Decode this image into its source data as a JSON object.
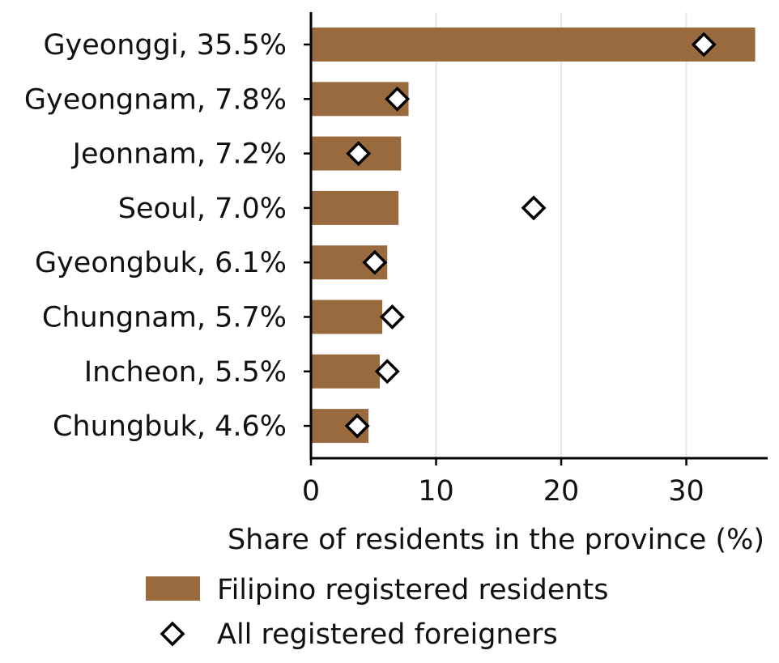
{
  "chart_data": {
    "type": "bar",
    "orientation": "horizontal",
    "categories": [
      "Gyeonggi, 35.5%",
      "Gyeongnam, 7.8%",
      "Jeonnam, 7.2%",
      "Seoul, 7.0%",
      "Gyeongbuk, 6.1%",
      "Chungnam, 5.7%",
      "Incheon, 5.5%",
      "Chungbuk, 4.6%"
    ],
    "series": [
      {
        "name": "Filipino registered residents",
        "mark": "bar",
        "color": "#9a6a3f",
        "values": [
          35.5,
          7.8,
          7.2,
          7.0,
          6.1,
          5.7,
          5.5,
          4.6
        ]
      },
      {
        "name": "All registered foreigners",
        "mark": "diamond",
        "color": "#000000",
        "values": [
          31.4,
          6.9,
          3.8,
          17.8,
          5.1,
          6.5,
          6.1,
          3.7
        ]
      }
    ],
    "xlabel": "Share of residents in the province (%)",
    "ylabel": "",
    "xlim": [
      0,
      36.5
    ],
    "xticks": [
      "0",
      "10",
      "20",
      "30"
    ],
    "grid": "vertical",
    "legend_placement": "bottom"
  }
}
